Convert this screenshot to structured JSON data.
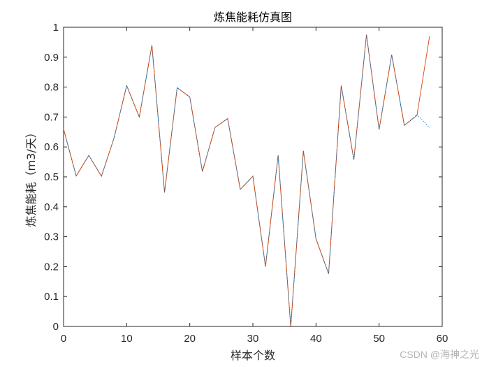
{
  "watermark": "CSDN @海神之光",
  "chart_data": {
    "type": "line",
    "title": "炼焦能耗仿真图",
    "xlabel": "样本个数",
    "ylabel": "炼焦能耗（m3/天）",
    "xlim": [
      0,
      60
    ],
    "ylim": [
      0,
      1
    ],
    "xticks": [
      0,
      10,
      20,
      30,
      40,
      50,
      60
    ],
    "yticks": [
      0,
      0.1,
      0.2,
      0.3,
      0.4,
      0.5,
      0.6,
      0.7,
      0.8,
      0.9,
      1
    ],
    "grid": false,
    "series": [
      {
        "style": "solid",
        "color": "#d95319",
        "x": [
          0,
          2,
          4,
          6,
          8,
          10,
          12,
          14,
          16,
          18,
          20,
          22,
          24,
          26,
          28,
          30,
          32,
          34,
          36,
          38,
          40,
          42,
          44,
          46,
          48,
          50,
          52,
          54,
          56,
          58
        ],
        "y": [
          0.66,
          0.503,
          0.572,
          0.502,
          0.63,
          0.805,
          0.7,
          0.94,
          0.448,
          0.798,
          0.767,
          0.518,
          0.665,
          0.695,
          0.458,
          0.502,
          0.2,
          0.572,
          0.0,
          0.587,
          0.293,
          0.176,
          0.805,
          0.557,
          0.975,
          0.658,
          0.908,
          0.672,
          0.705,
          0.97
        ]
      },
      {
        "style": "dotted",
        "color": "#0072bd",
        "x": [
          0,
          2,
          4,
          6,
          8,
          10,
          12,
          14,
          16,
          18,
          20,
          22,
          24,
          26,
          28,
          30,
          32,
          34,
          36,
          38,
          40,
          42,
          44,
          46,
          48,
          50,
          52,
          54,
          56,
          58
        ],
        "y": [
          0.66,
          0.503,
          0.572,
          0.502,
          0.63,
          0.805,
          0.7,
          0.94,
          0.448,
          0.798,
          0.767,
          0.518,
          0.665,
          0.695,
          0.458,
          0.502,
          0.2,
          0.572,
          0.0,
          0.587,
          0.293,
          0.176,
          0.805,
          0.557,
          0.975,
          0.658,
          0.908,
          0.672,
          0.708,
          0.665
        ]
      }
    ]
  }
}
